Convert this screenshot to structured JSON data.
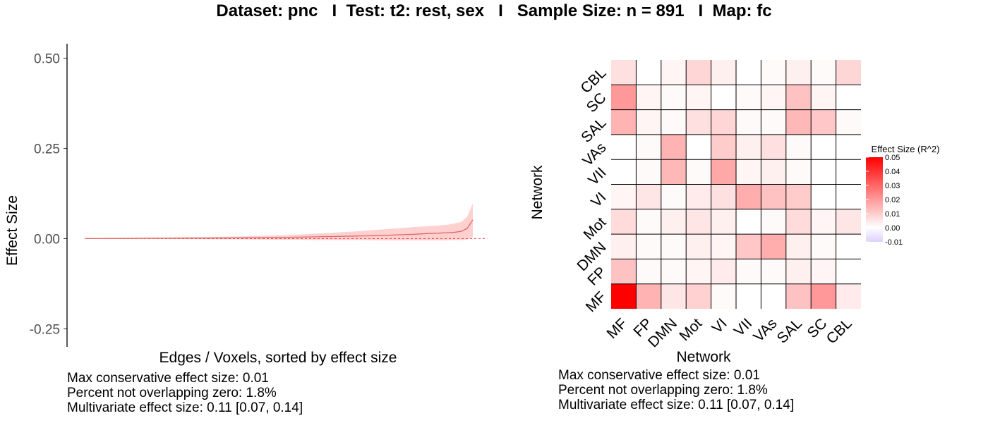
{
  "title": "Dataset: pnc   I  Test: t2: rest, sex   I   Sample Size: n = 891   I  Map: fc",
  "colors": {
    "line": "#e06a6a",
    "band": "#ffd0d0",
    "zero": "#e04040",
    "high": "#ff0000",
    "low": "#ddd0ff"
  },
  "left_notes": [
    "Max conservative effect size: 0.01",
    "Percent not overlapping zero: 1.8%",
    "Multivariate effect size: 0.11 [0.07, 0.14]"
  ],
  "right_notes": [
    "Max conservative effect size: 0.01",
    "Percent not overlapping zero: 1.8%",
    "Multivariate effect size: 0.11 [0.07, 0.14]"
  ],
  "chart_data": [
    {
      "type": "line",
      "xlabel": "Edges / Voxels, sorted by effect size",
      "ylabel": "Effect Size",
      "ylim": [
        -0.3,
        0.54
      ],
      "xlim": [
        0,
        1
      ],
      "yticks": [
        -0.25,
        0.0,
        0.25,
        0.5
      ],
      "ytick_labels": [
        "-0.25",
        "0.00",
        "0.25",
        "0.50"
      ],
      "zero_line": true,
      "grid": false,
      "series": [
        {
          "x": [
            0,
            0.1,
            0.2,
            0.3,
            0.4,
            0.5,
            0.55,
            0.6,
            0.65,
            0.7,
            0.75,
            0.8,
            0.85,
            0.88,
            0.91,
            0.93,
            0.95,
            0.97,
            0.985,
            1.0
          ],
          "values": [
            0,
            0.0005,
            0.001,
            0.0015,
            0.002,
            0.003,
            0.004,
            0.005,
            0.006,
            0.007,
            0.008,
            0.01,
            0.012,
            0.014,
            0.015,
            0.016,
            0.017,
            0.02,
            0.028,
            0.052
          ],
          "lower": [
            0,
            -0.0005,
            -0.001,
            -0.0015,
            -0.002,
            -0.003,
            -0.003,
            -0.004,
            -0.004,
            -0.004,
            -0.005,
            -0.005,
            -0.005,
            -0.005,
            -0.005,
            -0.005,
            -0.004,
            -0.004,
            -0.003,
            0.005
          ],
          "upper": [
            0,
            0.002,
            0.003,
            0.004,
            0.006,
            0.009,
            0.011,
            0.014,
            0.017,
            0.02,
            0.024,
            0.028,
            0.032,
            0.034,
            0.036,
            0.038,
            0.041,
            0.046,
            0.06,
            0.097
          ]
        }
      ]
    },
    {
      "type": "heatmap",
      "xlabel": "Network",
      "ylabel": "Network",
      "x_categories": [
        "MF",
        "FP",
        "DMN",
        "Mot",
        "VI",
        "VII",
        "VAs",
        "SAL",
        "SC",
        "CBL"
      ],
      "y_categories": [
        "CBL",
        "SC",
        "SAL",
        "VAs",
        "VII",
        "VI",
        "Mot",
        "DMN",
        "FP",
        "MF"
      ],
      "values": [
        [
          0.006,
          null,
          0.002,
          0.008,
          0.003,
          null,
          0.001,
          0.003,
          0.001,
          0.008
        ],
        [
          0.02,
          0.002,
          0.001,
          0.002,
          0.0,
          0.001,
          0.002,
          0.012,
          0.002,
          null
        ],
        [
          0.015,
          0.002,
          0.001,
          0.006,
          0.008,
          0.001,
          0.001,
          0.014,
          0.011,
          0.001
        ],
        [
          null,
          0.001,
          0.015,
          0.0,
          0.01,
          0.003,
          0.006,
          0.001,
          null,
          null
        ],
        [
          null,
          0.001,
          0.014,
          0.001,
          0.017,
          0.002,
          0.003,
          0.001,
          null,
          null
        ],
        [
          0.002,
          0.005,
          0.001,
          0.004,
          0.006,
          0.016,
          0.012,
          0.01,
          0.0,
          null
        ],
        [
          0.007,
          0.001,
          0.003,
          0.005,
          0.003,
          0.0,
          0.001,
          0.007,
          0.002,
          0.005
        ],
        [
          0.003,
          0.001,
          0.001,
          0.003,
          0.002,
          0.011,
          0.016,
          0.003,
          0.001,
          null
        ],
        [
          0.012,
          0.001,
          0.001,
          0.002,
          0.004,
          0.001,
          0.001,
          0.003,
          0.002,
          null
        ],
        [
          0.05,
          0.015,
          0.005,
          0.009,
          0.001,
          null,
          null,
          0.012,
          0.02,
          0.004
        ]
      ],
      "legend": {
        "title": "Effect Size (R^2)",
        "ticks": [
          0.05,
          0.04,
          0.03,
          0.02,
          0.01,
          0.0,
          -0.01
        ],
        "tick_labels": [
          "0.05",
          "0.04",
          "0.03",
          "0.02",
          "0.01",
          "0.00",
          "-0.01"
        ],
        "placement": "right"
      }
    }
  ]
}
